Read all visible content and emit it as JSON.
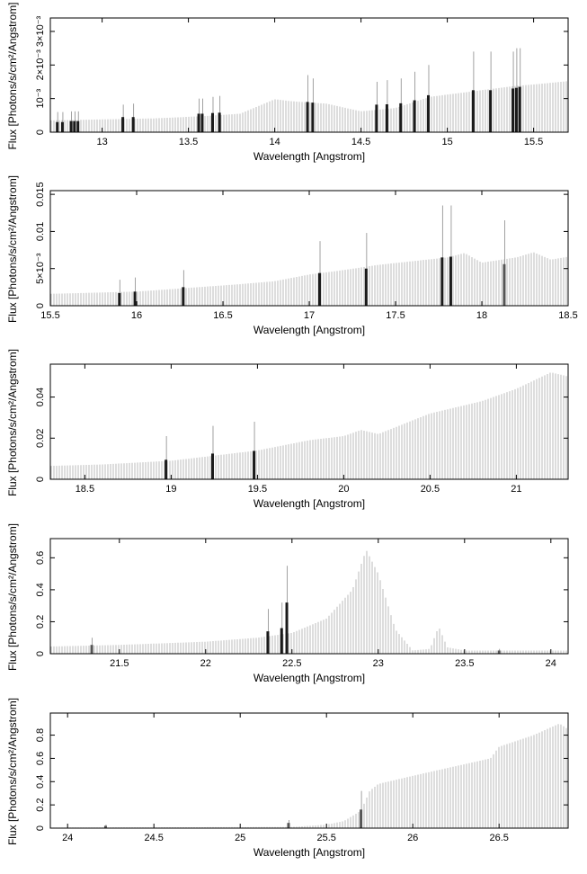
{
  "chart_data": [
    {
      "type": "bar",
      "xlabel": "Wavelength [Angstrom]",
      "ylabel": "Flux [Photons/s/cm²/Angstrom]",
      "xlim": [
        12.7,
        15.7
      ],
      "ylim": [
        0,
        0.0034
      ],
      "xticks": [
        {
          "v": 13,
          "t": "13"
        },
        {
          "v": 13.5,
          "t": "13.5"
        },
        {
          "v": 14,
          "t": "14"
        },
        {
          "v": 14.5,
          "t": "14.5"
        },
        {
          "v": 15,
          "t": "15"
        },
        {
          "v": 15.5,
          "t": "15.5"
        }
      ],
      "yticks": [
        {
          "v": 0,
          "t": "0"
        },
        {
          "v": 0.001,
          "t": "10⁻³"
        },
        {
          "v": 0.002,
          "t": "2×10⁻³"
        },
        {
          "v": 0.003,
          "t": "3×10⁻³"
        }
      ],
      "continuum": [
        [
          12.7,
          0.00035
        ],
        [
          13.0,
          0.00038
        ],
        [
          13.3,
          0.00041
        ],
        [
          13.6,
          0.00048
        ],
        [
          13.8,
          0.00055
        ],
        [
          14.0,
          0.00098
        ],
        [
          14.1,
          0.00092
        ],
        [
          14.3,
          0.00085
        ],
        [
          14.5,
          0.00062
        ],
        [
          14.7,
          0.00072
        ],
        [
          14.9,
          0.00105
        ],
        [
          15.0,
          0.00112
        ],
        [
          15.2,
          0.00125
        ],
        [
          15.4,
          0.00138
        ],
        [
          15.5,
          0.00142
        ],
        [
          15.7,
          0.00152
        ]
      ],
      "lines": [
        {
          "x": 12.74,
          "y": 0.0003,
          "err": 0.0006
        },
        {
          "x": 12.77,
          "y": 0.0003,
          "err": 0.0006
        },
        {
          "x": 12.82,
          "y": 0.00033,
          "err": 0.00062
        },
        {
          "x": 12.84,
          "y": 0.00033,
          "err": 0.00062
        },
        {
          "x": 12.86,
          "y": 0.00033,
          "err": 0.00062
        },
        {
          "x": 13.12,
          "y": 0.00045,
          "err": 0.00082
        },
        {
          "x": 13.18,
          "y": 0.00045,
          "err": 0.00085
        },
        {
          "x": 13.56,
          "y": 0.00055,
          "err": 0.001
        },
        {
          "x": 13.58,
          "y": 0.00055,
          "err": 0.001
        },
        {
          "x": 13.64,
          "y": 0.00057,
          "err": 0.00105
        },
        {
          "x": 13.68,
          "y": 0.00058,
          "err": 0.00108
        },
        {
          "x": 14.19,
          "y": 0.0009,
          "err": 0.0017
        },
        {
          "x": 14.22,
          "y": 0.00088,
          "err": 0.0016
        },
        {
          "x": 14.59,
          "y": 0.00082,
          "err": 0.0015
        },
        {
          "x": 14.65,
          "y": 0.00083,
          "err": 0.00155
        },
        {
          "x": 14.73,
          "y": 0.00086,
          "err": 0.0016
        },
        {
          "x": 14.81,
          "y": 0.00095,
          "err": 0.0018
        },
        {
          "x": 14.89,
          "y": 0.0011,
          "err": 0.002
        },
        {
          "x": 15.15,
          "y": 0.00125,
          "err": 0.0024
        },
        {
          "x": 15.25,
          "y": 0.00125,
          "err": 0.0024
        },
        {
          "x": 15.38,
          "y": 0.0013,
          "err": 0.0024
        },
        {
          "x": 15.4,
          "y": 0.00132,
          "err": 0.0025
        },
        {
          "x": 15.42,
          "y": 0.00135,
          "err": 0.0025
        }
      ]
    },
    {
      "type": "bar",
      "xlabel": "Wavelength [Angstrom]",
      "ylabel": "Flux [Photons/s/cm²/Angstrom]",
      "xlim": [
        15.5,
        18.5
      ],
      "ylim": [
        0,
        0.0155
      ],
      "xticks": [
        {
          "v": 15.5,
          "t": "15.5"
        },
        {
          "v": 16,
          "t": "16"
        },
        {
          "v": 16.5,
          "t": "16.5"
        },
        {
          "v": 17,
          "t": "17"
        },
        {
          "v": 17.5,
          "t": "17.5"
        },
        {
          "v": 18,
          "t": "18"
        },
        {
          "v": 18.5,
          "t": "18.5"
        }
      ],
      "yticks": [
        {
          "v": 0,
          "t": "0"
        },
        {
          "v": 0.005,
          "t": "5×10⁻³"
        },
        {
          "v": 0.01,
          "t": "0.01"
        },
        {
          "v": 0.015,
          "t": "0.015"
        }
      ],
      "continuum": [
        [
          15.5,
          0.0016
        ],
        [
          16.0,
          0.0019
        ],
        [
          16.3,
          0.0024
        ],
        [
          16.6,
          0.0029
        ],
        [
          16.8,
          0.0033
        ],
        [
          17.0,
          0.0042
        ],
        [
          17.2,
          0.0048
        ],
        [
          17.4,
          0.0055
        ],
        [
          17.6,
          0.006
        ],
        [
          17.8,
          0.0065
        ],
        [
          17.9,
          0.0071
        ],
        [
          18.0,
          0.0058
        ],
        [
          18.2,
          0.0065
        ],
        [
          18.3,
          0.0072
        ],
        [
          18.4,
          0.0062
        ],
        [
          18.5,
          0.0066
        ]
      ],
      "lines": [
        {
          "x": 15.9,
          "y": 0.0017,
          "err": 0.0035
        },
        {
          "x": 15.99,
          "y": 0.0019,
          "err": 0.0038
        },
        {
          "x": 16.27,
          "y": 0.0025,
          "err": 0.0048
        },
        {
          "x": 17.06,
          "y": 0.0044,
          "err": 0.0087
        },
        {
          "x": 17.33,
          "y": 0.005,
          "err": 0.0098
        },
        {
          "x": 17.77,
          "y": 0.0065,
          "err": 0.0135
        },
        {
          "x": 17.82,
          "y": 0.0066,
          "err": 0.0135
        },
        {
          "x": 18.13,
          "y": 0.0056,
          "err": 0.0115,
          "weak": true
        }
      ]
    },
    {
      "type": "bar",
      "xlabel": "Wavelength [Angstrom]",
      "ylabel": "Flux [Photons/s/cm²/Angstrom]",
      "xlim": [
        18.3,
        21.3
      ],
      "ylim": [
        0,
        0.056
      ],
      "xticks": [
        {
          "v": 18.5,
          "t": "18.5"
        },
        {
          "v": 19,
          "t": "19"
        },
        {
          "v": 19.5,
          "t": "19.5"
        },
        {
          "v": 20,
          "t": "20"
        },
        {
          "v": 20.5,
          "t": "20.5"
        },
        {
          "v": 21,
          "t": "21"
        }
      ],
      "yticks": [
        {
          "v": 0,
          "t": "0"
        },
        {
          "v": 0.02,
          "t": "0.02"
        },
        {
          "v": 0.04,
          "t": "0.04"
        }
      ],
      "continuum": [
        [
          18.3,
          0.0065
        ],
        [
          18.6,
          0.0072
        ],
        [
          19.0,
          0.009
        ],
        [
          19.3,
          0.012
        ],
        [
          19.5,
          0.014
        ],
        [
          19.8,
          0.019
        ],
        [
          20.0,
          0.021
        ],
        [
          20.1,
          0.024
        ],
        [
          20.2,
          0.022
        ],
        [
          20.5,
          0.032
        ],
        [
          20.8,
          0.038
        ],
        [
          21.0,
          0.044
        ],
        [
          21.1,
          0.048
        ],
        [
          21.2,
          0.052
        ],
        [
          21.3,
          0.05
        ]
      ],
      "lines": [
        {
          "x": 18.97,
          "y": 0.0095,
          "err": 0.021
        },
        {
          "x": 19.24,
          "y": 0.0125,
          "err": 0.026
        },
        {
          "x": 19.48,
          "y": 0.0138,
          "err": 0.028
        }
      ]
    },
    {
      "type": "bar",
      "xlabel": "Wavelength [Angstrom]",
      "ylabel": "Flux [Photons/s/cm²/Angstrom]",
      "xlim": [
        21.1,
        24.1
      ],
      "ylim": [
        0,
        0.72
      ],
      "xticks": [
        {
          "v": 21.5,
          "t": "21.5"
        },
        {
          "v": 22,
          "t": "22"
        },
        {
          "v": 22.5,
          "t": "22.5"
        },
        {
          "v": 23,
          "t": "23"
        },
        {
          "v": 23.5,
          "t": "23.5"
        },
        {
          "v": 24,
          "t": "24"
        }
      ],
      "yticks": [
        {
          "v": 0,
          "t": "0"
        },
        {
          "v": 0.2,
          "t": "0.2"
        },
        {
          "v": 0.4,
          "t": "0.4"
        },
        {
          "v": 0.6,
          "t": "0.6"
        }
      ],
      "continuum": [
        [
          21.1,
          0.045
        ],
        [
          21.5,
          0.055
        ],
        [
          22.0,
          0.075
        ],
        [
          22.3,
          0.1
        ],
        [
          22.5,
          0.13
        ],
        [
          22.7,
          0.22
        ],
        [
          22.85,
          0.4
        ],
        [
          22.93,
          0.65
        ],
        [
          23.0,
          0.5
        ],
        [
          23.1,
          0.15
        ],
        [
          23.2,
          0.02
        ],
        [
          23.3,
          0.03
        ],
        [
          23.35,
          0.17
        ],
        [
          23.4,
          0.04
        ],
        [
          23.5,
          0.02
        ],
        [
          24.1,
          0.02
        ]
      ],
      "lines": [
        {
          "x": 21.34,
          "y": 0.055,
          "err": 0.1,
          "weak": true
        },
        {
          "x": 22.36,
          "y": 0.14,
          "err": 0.28
        },
        {
          "x": 22.44,
          "y": 0.16,
          "err": 0.32
        },
        {
          "x": 22.47,
          "y": 0.32,
          "err": 0.55
        },
        {
          "x": 23.7,
          "y": 0.02,
          "err": 0.03,
          "weak": true
        }
      ]
    },
    {
      "type": "bar",
      "xlabel": "Wavelength [Angstrom]",
      "ylabel": "Flux [Photons/s/cm²/Angstrom]",
      "xlim": [
        23.9,
        26.9
      ],
      "ylim": [
        0,
        0.99
      ],
      "xticks": [
        {
          "v": 24,
          "t": "24"
        },
        {
          "v": 24.5,
          "t": "24.5"
        },
        {
          "v": 25,
          "t": "25"
        },
        {
          "v": 25.5,
          "t": "25.5"
        },
        {
          "v": 26,
          "t": "26"
        },
        {
          "v": 26.5,
          "t": "26.5"
        }
      ],
      "yticks": [
        {
          "v": 0,
          "t": "0"
        },
        {
          "v": 0.2,
          "t": "0.2"
        },
        {
          "v": 0.4,
          "t": "0.4"
        },
        {
          "v": 0.6,
          "t": "0.6"
        },
        {
          "v": 0.8,
          "t": "0.8"
        }
      ],
      "continuum": [
        [
          23.9,
          0.005
        ],
        [
          25.3,
          0.01
        ],
        [
          25.5,
          0.03
        ],
        [
          25.6,
          0.06
        ],
        [
          25.7,
          0.15
        ],
        [
          25.75,
          0.32
        ],
        [
          25.8,
          0.38
        ],
        [
          26.0,
          0.45
        ],
        [
          26.3,
          0.55
        ],
        [
          26.45,
          0.6
        ],
        [
          26.5,
          0.7
        ],
        [
          26.7,
          0.8
        ],
        [
          26.85,
          0.9
        ],
        [
          26.9,
          0.85
        ]
      ],
      "lines": [
        {
          "x": 24.22,
          "y": 0.02,
          "err": 0.03,
          "weak": true
        },
        {
          "x": 25.28,
          "y": 0.045,
          "err": 0.07,
          "weak": true
        },
        {
          "x": 25.7,
          "y": 0.16,
          "err": 0.32,
          "weak": true
        }
      ]
    }
  ]
}
